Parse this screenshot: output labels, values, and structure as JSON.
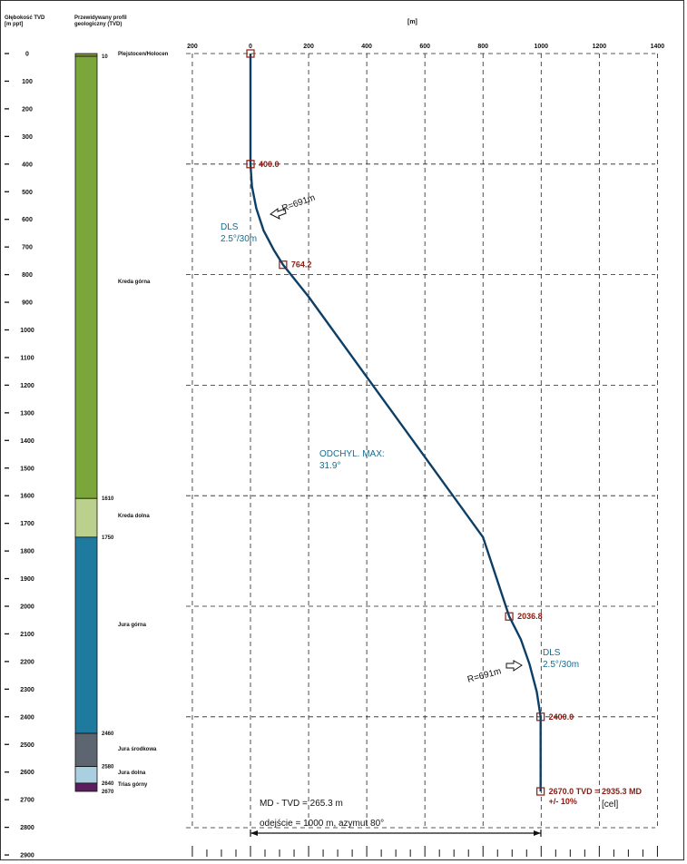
{
  "headers": {
    "depth_title": "Głębokość TVD",
    "depth_unit": "[m ppt]",
    "profile_title": "Przewidywany profil",
    "profile_sub": "geologiczny (TVD)",
    "x_unit": "[m]"
  },
  "x_ticks": [
    "200",
    "0",
    "200",
    "400",
    "600",
    "800",
    "1000",
    "1200",
    "1400"
  ],
  "depth_ticks": [
    "0",
    "100",
    "200",
    "300",
    "400",
    "500",
    "600",
    "700",
    "800",
    "900",
    "1000",
    "1100",
    "1200",
    "1300",
    "1400",
    "1500",
    "1600",
    "1700",
    "1800",
    "1900",
    "2000",
    "2100",
    "2200",
    "2300",
    "2400",
    "2500",
    "2600",
    "2700",
    "2800",
    "2900"
  ],
  "layers": [
    {
      "name": "Plejstocen/Holocen",
      "top": 0,
      "bottom": 10,
      "top_label": "",
      "bottom_label": "10",
      "color": "#8a8f3c"
    },
    {
      "name": "Kreda górna",
      "top": 10,
      "bottom": 1610,
      "top_label": "",
      "bottom_label": "1610",
      "color": "#7aa63a"
    },
    {
      "name": "Kreda dolna",
      "top": 1610,
      "bottom": 1750,
      "top_label": "",
      "bottom_label": "1750",
      "color": "#bcd08e"
    },
    {
      "name": "Jura górna",
      "top": 1750,
      "bottom": 2460,
      "top_label": "",
      "bottom_label": "2460",
      "color": "#1f7aa0"
    },
    {
      "name": "Jura środkowa",
      "top": 2460,
      "bottom": 2580,
      "top_label": "",
      "bottom_label": "2580",
      "color": "#5d6670"
    },
    {
      "name": "Jura dolna",
      "top": 2580,
      "bottom": 2640,
      "top_label": "",
      "bottom_label": "2640",
      "color": "#a9cfe0"
    },
    {
      "name": "Trias górny",
      "top": 2640,
      "bottom": 2670,
      "top_label": "",
      "bottom_label": "2670",
      "color": "#5a1f5c"
    }
  ],
  "chart_data": {
    "type": "line",
    "x_label": "[m]",
    "y_label": "Głębokość TVD [m ppt]",
    "xlim": [
      -200,
      1400
    ],
    "ylim": [
      2900,
      0
    ],
    "grid": true,
    "series": [
      {
        "values_xy": [
          [
            0,
            0
          ],
          [
            0,
            400
          ],
          [
            5,
            480
          ],
          [
            20,
            560
          ],
          [
            45,
            640
          ],
          [
            80,
            710
          ],
          [
            112,
            764.2
          ],
          [
            200,
            880
          ],
          [
            400,
            1170
          ],
          [
            600,
            1460
          ],
          [
            800,
            1750
          ],
          [
            890,
            2036.8
          ],
          [
            930,
            2120
          ],
          [
            960,
            2210
          ],
          [
            985,
            2310
          ],
          [
            998,
            2400
          ],
          [
            998,
            2670
          ]
        ]
      }
    ],
    "markers": [
      {
        "x": 0,
        "y": 0,
        "label": ""
      },
      {
        "x": 0,
        "y": 400,
        "label": "400.0"
      },
      {
        "x": 112,
        "y": 764.2,
        "label": "764.2"
      },
      {
        "x": 890,
        "y": 2036.8,
        "label": "2036.8"
      },
      {
        "x": 998,
        "y": 2400,
        "label": "2400.0"
      },
      {
        "x": 998,
        "y": 2670,
        "label": "2670.0 TVD = 2935.3 MD"
      }
    ],
    "annotations": {
      "dls_top": [
        "DLS",
        "2.5°/30m"
      ],
      "r_top": "R=691m",
      "max_incl": [
        "ODCHYL. MAX:",
        "31.9°"
      ],
      "dls_bottom": [
        "DLS",
        "2.5°/30m"
      ],
      "r_bottom": "R=691m",
      "tolerance": "+/- 10%",
      "target": "[cel]",
      "md_tvd": "MD - TVD = 265.3 m",
      "offset": "odejście = 1000 m, azymut 80°"
    },
    "colors": {
      "trajectory": "#0d3f66",
      "marker": "#8b1a10",
      "annotation": "#1a6a8c"
    }
  }
}
